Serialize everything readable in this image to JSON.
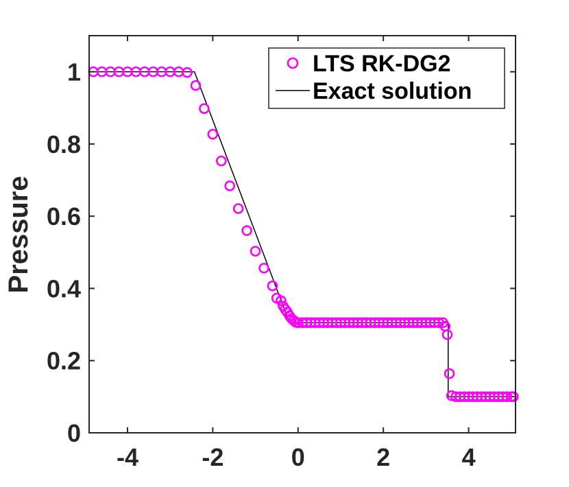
{
  "chart_data": {
    "type": "line",
    "title": "",
    "xlabel": "",
    "ylabel": "Pressure",
    "xlim": [
      -4.9,
      5.1
    ],
    "ylim": [
      0,
      1.1
    ],
    "xticks": [
      -4,
      -2,
      0,
      2,
      4
    ],
    "xtick_labels": [
      "-4",
      "-2",
      "0",
      "2",
      "4"
    ],
    "yticks": [
      0,
      0.2,
      0.4,
      0.6,
      0.8,
      1
    ],
    "ytick_labels": [
      "0",
      "0.2",
      "0.4",
      "0.6",
      "0.8",
      "1"
    ],
    "grid": false,
    "legend_position": "top-right",
    "series": [
      {
        "name": "LTS RK-DG2",
        "style": "markers",
        "marker": "circle",
        "color": "#ff00ff",
        "x": [
          -4.8,
          -4.6,
          -4.4,
          -4.2,
          -4.0,
          -3.8,
          -3.6,
          -3.4,
          -3.2,
          -3.0,
          -2.8,
          -2.6,
          -2.4,
          -2.2,
          -2.0,
          -1.8,
          -1.6,
          -1.4,
          -1.2,
          -1.0,
          -0.8,
          -0.6,
          -0.5,
          -0.4,
          -0.35,
          -0.3,
          -0.25,
          -0.2,
          -0.15,
          -0.1,
          -0.05,
          0.0,
          0.1,
          0.2,
          0.3,
          0.4,
          0.5,
          0.6,
          0.7,
          0.8,
          0.9,
          1.0,
          1.1,
          1.2,
          1.3,
          1.4,
          1.5,
          1.6,
          1.7,
          1.8,
          1.9,
          2.0,
          2.1,
          2.2,
          2.3,
          2.4,
          2.5,
          2.6,
          2.7,
          2.8,
          2.9,
          3.0,
          3.1,
          3.2,
          3.3,
          3.4,
          3.45,
          3.5,
          3.55,
          3.6,
          3.7,
          3.8,
          3.9,
          4.0,
          4.1,
          4.2,
          4.3,
          4.4,
          4.5,
          4.6,
          4.7,
          4.8,
          4.9,
          5.0,
          5.05
        ],
        "y": [
          1,
          1,
          1,
          1,
          1,
          1,
          1,
          1,
          1,
          1,
          1,
          0.998,
          0.962,
          0.898,
          0.827,
          0.753,
          0.684,
          0.621,
          0.56,
          0.503,
          0.456,
          0.407,
          0.373,
          0.366,
          0.351,
          0.342,
          0.334,
          0.324,
          0.316,
          0.311,
          0.306,
          0.305,
          0.305,
          0.305,
          0.305,
          0.305,
          0.305,
          0.305,
          0.305,
          0.305,
          0.305,
          0.305,
          0.305,
          0.305,
          0.305,
          0.305,
          0.305,
          0.305,
          0.305,
          0.305,
          0.305,
          0.305,
          0.305,
          0.305,
          0.305,
          0.305,
          0.305,
          0.305,
          0.305,
          0.305,
          0.305,
          0.305,
          0.305,
          0.305,
          0.305,
          0.305,
          0.295,
          0.272,
          0.164,
          0.103,
          0.1,
          0.1,
          0.1,
          0.1,
          0.1,
          0.1,
          0.1,
          0.1,
          0.1,
          0.1,
          0.1,
          0.1,
          0.1,
          0.1,
          0.1
        ]
      },
      {
        "name": "Exact solution",
        "style": "line",
        "color": "#000000",
        "x": [
          -4.9,
          -2.43,
          -0.2,
          3.52,
          3.52,
          5.1
        ],
        "y": [
          1,
          1,
          0.305,
          0.305,
          0.1,
          0.1
        ]
      }
    ]
  }
}
